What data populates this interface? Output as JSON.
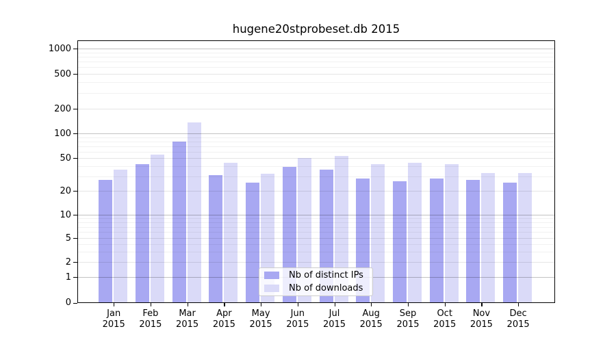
{
  "title": "hugene20stprobeset.db 2015",
  "chart_data": {
    "type": "bar",
    "title": "hugene20stprobeset.db 2015",
    "categories": [
      "Jan 2015",
      "Feb 2015",
      "Mar 2015",
      "Apr 2015",
      "May 2015",
      "Jun 2015",
      "Jul 2015",
      "Aug 2015",
      "Sep 2015",
      "Oct 2015",
      "Nov 2015",
      "Dec 2015"
    ],
    "series": [
      {
        "name": "Nb of distinct IPs",
        "color": "#a8a8f2",
        "values": [
          27,
          42,
          80,
          31,
          25,
          39,
          36,
          28,
          26,
          28,
          27,
          25
        ]
      },
      {
        "name": "Nb of downloads",
        "color": "#dadaf8",
        "values": [
          36,
          55,
          137,
          44,
          32,
          50,
          53,
          42,
          44,
          42,
          33,
          33
        ]
      }
    ],
    "yscale": "symlog",
    "yticks": [
      0,
      1,
      2,
      5,
      10,
      20,
      50,
      100,
      200,
      500,
      1000
    ],
    "ylim": [
      0,
      1400
    ],
    "xlabel": "",
    "ylabel": "",
    "grid": "horizontal major and minor gridlines, drawn over bars",
    "legend_position": "inside lower-center"
  },
  "colors": {
    "major_grid": "rgba(0,0,0,0.24)",
    "mid_grid": "rgba(0,0,0,0.10)",
    "minor_grid": "rgba(0,0,0,0.055)",
    "axis": "#000000",
    "background": "#ffffff"
  }
}
